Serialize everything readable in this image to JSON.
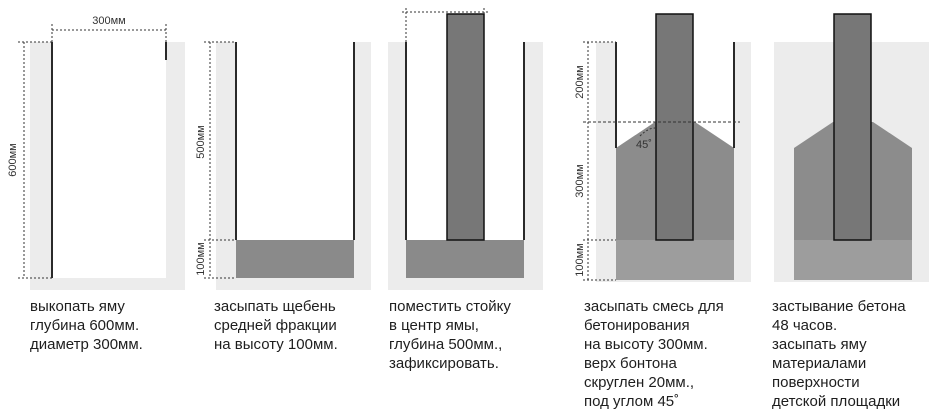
{
  "colors": {
    "soil": "#ececec",
    "wall": "#2a2a2a",
    "gravel": "#8a8a8a",
    "post": "#777777",
    "post_outline": "#111111",
    "concrete": "#9d9d9d",
    "text": "#1e1e1e"
  },
  "dimensions": {
    "diameter": "300мм",
    "depth": "600мм",
    "depth_upper": "500мм",
    "gravel_height": "100мм",
    "post_above": "200мм",
    "concrete_height": "300мм",
    "gravel_height_2": "100мм",
    "angle": "45˚"
  },
  "steps": [
    {
      "lines": [
        "выкопать яму",
        "глубина 600мм.",
        "диаметр 300мм."
      ]
    },
    {
      "lines": [
        "засыпать щебень",
        "средней фракции",
        "на высоту 100мм."
      ]
    },
    {
      "lines": [
        "поместить стойку",
        "в центр ямы,",
        "глубина 500мм.,",
        "зафиксировать."
      ]
    },
    {
      "lines": [
        "засыпать смесь для",
        "бетонирования",
        "на высоту 300мм.",
        "верх бонтона",
        "скруглен 20мм.,",
        "под углом 45˚"
      ]
    },
    {
      "lines": [
        "застывание бетона",
        "48 часов.",
        "засыпать яму",
        "материалами",
        "поверхности",
        "детской площадки"
      ]
    }
  ]
}
